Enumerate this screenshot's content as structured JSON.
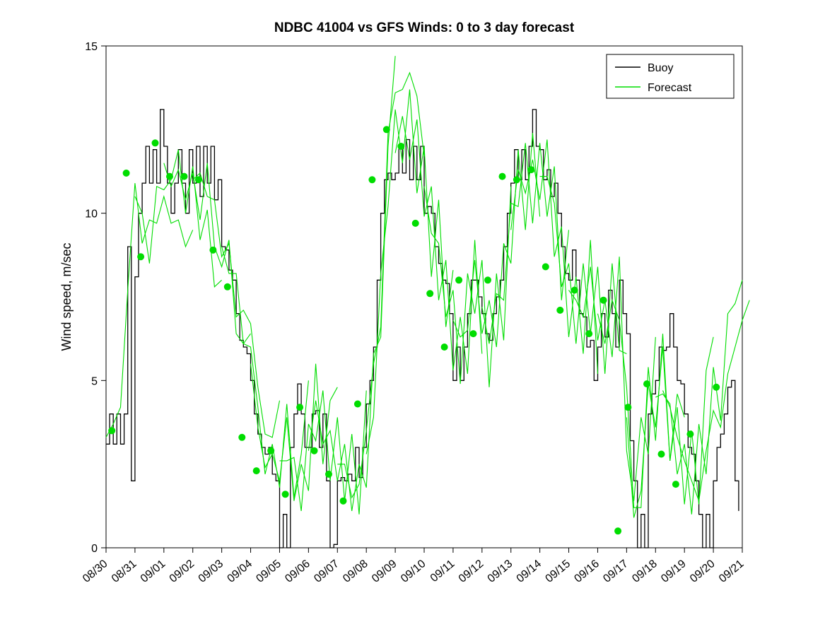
{
  "chart_data": {
    "type": "line",
    "title": "NDBC 41004 vs GFS Winds: 0 to 3 day forecast",
    "xlabel": "",
    "ylabel": "Wind speed, m/sec",
    "ylim": [
      0,
      15
    ],
    "yticks": [
      0,
      5,
      10,
      15
    ],
    "xlim_days": [
      0,
      22
    ],
    "xtick_labels": [
      "08/30",
      "08/31",
      "09/01",
      "09/02",
      "09/03",
      "09/04",
      "09/05",
      "09/06",
      "09/07",
      "09/08",
      "09/09",
      "09/10",
      "09/11",
      "09/12",
      "09/13",
      "09/14",
      "09/15",
      "09/16",
      "09/17",
      "09/18",
      "09/19",
      "09/20",
      "09/21"
    ],
    "grid": false,
    "colors": {
      "buoy": "#000000",
      "forecast": "#00dd00"
    },
    "legend": {
      "position": "top-right",
      "entries": [
        "Buoy",
        "Forecast"
      ]
    },
    "buoy": {
      "t0": 0,
      "dt": 0.125,
      "values": [
        3.1,
        4.0,
        3.1,
        4.0,
        3.1,
        4.0,
        9.0,
        2.0,
        8.1,
        10.0,
        10.9,
        12.0,
        10.9,
        11.9,
        10.9,
        13.1,
        12.0,
        10.9,
        10.0,
        10.9,
        11.9,
        10.9,
        10.0,
        11.9,
        10.9,
        12.0,
        10.5,
        12.0,
        10.9,
        12.0,
        10.4,
        11.0,
        9.0,
        8.9,
        8.3,
        8.0,
        7.0,
        6.2,
        6.0,
        5.8,
        5.0,
        4.0,
        3.4,
        3.0,
        2.8,
        3.0,
        2.2,
        2.0,
        0.0,
        1.0,
        0.0,
        3.0,
        4.0,
        4.9,
        4.0,
        3.0,
        3.0,
        4.0,
        4.1,
        3.0,
        4.0,
        2.0,
        0.0,
        0.1,
        2.0,
        2.1,
        2.0,
        2.2,
        2.0,
        3.0,
        2.1,
        3.0,
        4.3,
        5.0,
        6.0,
        8.0,
        10.0,
        11.0,
        11.2,
        11.0,
        11.2,
        12.0,
        11.2,
        12.2,
        11.0,
        12.0,
        11.0,
        12.0,
        10.0,
        10.2,
        10.0,
        9.0,
        8.5,
        8.0,
        7.9,
        7.0,
        5.0,
        6.0,
        5.0,
        6.0,
        7.0,
        8.0,
        8.0,
        7.5,
        7.0,
        6.4,
        6.2,
        7.0,
        7.5,
        8.0,
        9.0,
        10.0,
        10.9,
        11.9,
        11.0,
        11.9,
        11.0,
        12.0,
        13.1,
        12.0,
        11.9,
        11.0,
        11.3,
        10.5,
        10.9,
        10.0,
        9.0,
        8.2,
        8.0,
        8.9,
        8.0,
        7.0,
        6.9,
        6.0,
        6.2,
        5.0,
        6.0,
        7.0,
        6.3,
        7.7,
        7.0,
        6.0,
        8.0,
        7.0,
        6.4,
        3.2,
        2.0,
        0.0,
        1.0,
        0.0,
        4.0,
        4.6,
        5.0,
        6.0,
        5.9,
        6.0,
        7.0,
        6.0,
        5.0,
        4.9,
        4.0,
        3.0,
        2.8,
        2.0,
        1.0,
        0.0,
        1.0,
        0.0,
        2.0,
        3.0,
        3.4,
        4.0,
        4.8,
        5.0,
        2.0,
        1.1
      ]
    },
    "forecast_dt": 0.25,
    "forecast_runs": [
      {
        "start": 0,
        "values": [
          3.3,
          3.7,
          4.2,
          7.7,
          10.9,
          9.1,
          9.8,
          9.7,
          10.5,
          9.7,
          9.8,
          9.0,
          9.5
        ]
      },
      {
        "start": 1,
        "values": [
          10.5,
          10.0,
          8.5,
          10.8,
          10.7,
          11.0,
          11.9,
          10.0,
          11.4,
          9.2,
          10.1,
          7.8,
          8.0
        ]
      },
      {
        "start": 2,
        "values": [
          11.5,
          10.8,
          11.3,
          10.4,
          11.2,
          9.8,
          11.5,
          9.0,
          8.4,
          9.2,
          6.4,
          6.1,
          6.4
        ]
      },
      {
        "start": 3,
        "values": [
          11.0,
          11.2,
          10.5,
          10.4,
          8.7,
          9.1,
          6.9,
          7.1,
          6.7,
          4.8,
          3.4,
          3.3,
          4.4
        ]
      },
      {
        "start": 4,
        "values": [
          9.0,
          8.2,
          8.2,
          6.1,
          6.0,
          4.2,
          2.2,
          3.1,
          1.8,
          4.3,
          1.5,
          2.8,
          5.0
        ]
      },
      {
        "start": 5,
        "values": [
          5.5,
          3.6,
          2.4,
          2.8,
          2.0,
          3.9,
          1.4,
          2.5,
          1.7,
          5.5,
          2.5,
          4.4,
          4.8
        ]
      },
      {
        "start": 6,
        "values": [
          2.6,
          2.6,
          2.7,
          1.1,
          3.7,
          3.2,
          4.7,
          2.0,
          3.9,
          1.4,
          3.4,
          1.0,
          4.7
        ]
      },
      {
        "start": 7,
        "values": [
          2.9,
          4.4,
          3.1,
          3.5,
          2.0,
          3.1,
          1.1,
          2.5,
          1.8,
          5.8,
          6.3,
          12.0,
          14.7
        ]
      },
      {
        "start": 8,
        "values": [
          2.5,
          2.5,
          1.5,
          1.9,
          3.5,
          5.5,
          6.6,
          12.4,
          13.6,
          13.7,
          14.2,
          13.5,
          11.7
        ]
      },
      {
        "start": 9,
        "values": [
          2.8,
          3.9,
          8.2,
          10.2,
          13.1,
          11.5,
          13.7,
          10.6,
          12.0,
          8.1,
          10.4,
          6.6,
          8.3
        ]
      },
      {
        "start": 10,
        "values": [
          11.8,
          12.9,
          11.6,
          12.8,
          9.9,
          10.8,
          7.4,
          8.6,
          5.3,
          6.9,
          5.2,
          9.2,
          5.8
        ]
      },
      {
        "start": 11,
        "values": [
          10.8,
          9.4,
          9.1,
          6.9,
          7.7,
          4.9,
          8.2,
          7.0,
          8.6,
          4.8,
          8.2,
          6.2,
          10.8
        ]
      },
      {
        "start": 12,
        "values": [
          6.8,
          6.3,
          6.5,
          8.6,
          6.4,
          7.4,
          6.0,
          9.1,
          8.5,
          11.9,
          9.5,
          12.4,
          9.9
        ]
      },
      {
        "start": 13,
        "values": [
          7.2,
          6.1,
          7.6,
          7.4,
          10.3,
          10.2,
          12.1,
          9.7,
          12.1,
          9.9,
          11.4,
          7.4,
          9.5
        ]
      },
      {
        "start": 14,
        "values": [
          9.5,
          11.3,
          10.6,
          11.6,
          10.4,
          12.2,
          8.7,
          9.6,
          6.3,
          8.1,
          5.8,
          9.2,
          5.2
        ]
      },
      {
        "start": 15,
        "values": [
          11.1,
          11.1,
          10.3,
          7.8,
          8.5,
          6.1,
          8.5,
          6.4,
          8.4,
          5.2,
          8.5,
          5.9,
          5.8
        ]
      },
      {
        "start": 16,
        "values": [
          7.7,
          7.4,
          6.9,
          8.4,
          6.2,
          7.4,
          5.7,
          8.7,
          2.9,
          1.4,
          3.9,
          2.8,
          6.3
        ]
      },
      {
        "start": 17,
        "values": [
          7.0,
          6.1,
          7.4,
          6.8,
          4.8,
          1.2,
          1.2,
          5.4,
          3.2,
          6.4,
          2.6,
          4.6,
          3.9
        ]
      },
      {
        "start": 18,
        "values": [
          3.9,
          0.9,
          1.7,
          4.9,
          3.6,
          6.0,
          2.6,
          4.2,
          1.3,
          3.5,
          1.3,
          5.3,
          6.3
        ]
      },
      {
        "start": 19,
        "values": [
          4.5,
          4.6,
          4.3,
          2.2,
          3.1,
          1.0,
          3.7,
          2.2,
          5.4,
          3.8,
          7.0,
          7.3,
          8.0
        ]
      },
      {
        "start": 19.25,
        "values": [
          4.7,
          4.2,
          3.3,
          2.6,
          2.0,
          1.4,
          2.9,
          4.1,
          3.6,
          5.2,
          6.0,
          6.8,
          7.4
        ]
      }
    ],
    "markers": {
      "t": [
        0.2,
        0.7,
        1.2,
        1.7,
        2.2,
        2.7,
        3.2,
        3.7,
        4.2,
        4.7,
        5.2,
        5.7,
        6.2,
        6.7,
        7.2,
        7.7,
        8.2,
        8.7,
        9.2,
        9.7,
        10.2,
        10.7,
        11.2,
        11.7,
        12.2,
        12.7,
        13.2,
        13.7,
        14.2,
        14.7,
        15.2,
        15.7,
        16.2,
        16.7,
        17.2,
        17.7,
        18.05,
        18.7,
        19.2,
        19.7,
        20.2,
        21.1
      ],
      "y": [
        3.5,
        11.2,
        8.7,
        12.1,
        11.1,
        11.1,
        11.0,
        8.9,
        7.8,
        3.3,
        2.3,
        2.9,
        1.6,
        4.2,
        2.9,
        2.2,
        1.4,
        4.3,
        11.0,
        12.5,
        12.0,
        9.7,
        7.6,
        6.0,
        8.0,
        6.4,
        8.0,
        11.1,
        11.0,
        11.3,
        8.4,
        7.1,
        7.7,
        6.4,
        7.4,
        0.5,
        4.2,
        4.9,
        2.8,
        1.9,
        3.4,
        4.8
      ]
    }
  }
}
